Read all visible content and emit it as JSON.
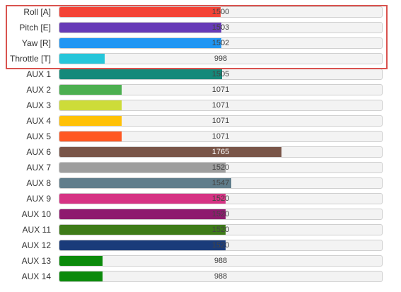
{
  "range": {
    "min": 800,
    "max": 2200
  },
  "channels": [
    {
      "label": "Roll [A]",
      "value": 1500,
      "display": "1500",
      "color": "#f44336"
    },
    {
      "label": "Pitch [E]",
      "value": 1503,
      "display": "1503",
      "color": "#673ab7"
    },
    {
      "label": "Yaw [R]",
      "value": 1502,
      "display": "1502",
      "color": "#2196f3"
    },
    {
      "label": "Throttle [T]",
      "value": 998,
      "display": "998",
      "color": "#26c6da"
    },
    {
      "label": "AUX 1",
      "value": 1505,
      "display": "1505",
      "color": "#15897a"
    },
    {
      "label": "AUX 2",
      "value": 1071,
      "display": "1071",
      "color": "#4caf50"
    },
    {
      "label": "AUX 3",
      "value": 1071,
      "display": "1071",
      "color": "#cddc39"
    },
    {
      "label": "AUX 4",
      "value": 1071,
      "display": "1071",
      "color": "#ffc107"
    },
    {
      "label": "AUX 5",
      "value": 1071,
      "display": "1071",
      "color": "#ff5722"
    },
    {
      "label": "AUX 6",
      "value": 1765,
      "display": "1765",
      "color": "#795548"
    },
    {
      "label": "AUX 7",
      "value": 1520,
      "display": "1520",
      "color": "#9e9e9e"
    },
    {
      "label": "AUX 8",
      "value": 1547,
      "display": "1547",
      "color": "#607d8b"
    },
    {
      "label": "AUX 9",
      "value": 1520,
      "display": "1520",
      "color": "#d63384"
    },
    {
      "label": "AUX 10",
      "value": 1520,
      "display": "1520",
      "color": "#8e1a6e"
    },
    {
      "label": "AUX 11",
      "value": 1520,
      "display": "1520",
      "color": "#3e7b18"
    },
    {
      "label": "AUX 12",
      "value": 1520,
      "display": "1520",
      "color": "#1a3b7a"
    },
    {
      "label": "AUX 13",
      "value": 988,
      "display": "988",
      "color": "#0b8a0b"
    },
    {
      "label": "AUX 14",
      "value": 988,
      "display": "988",
      "color": "#0b8a0b"
    }
  ]
}
